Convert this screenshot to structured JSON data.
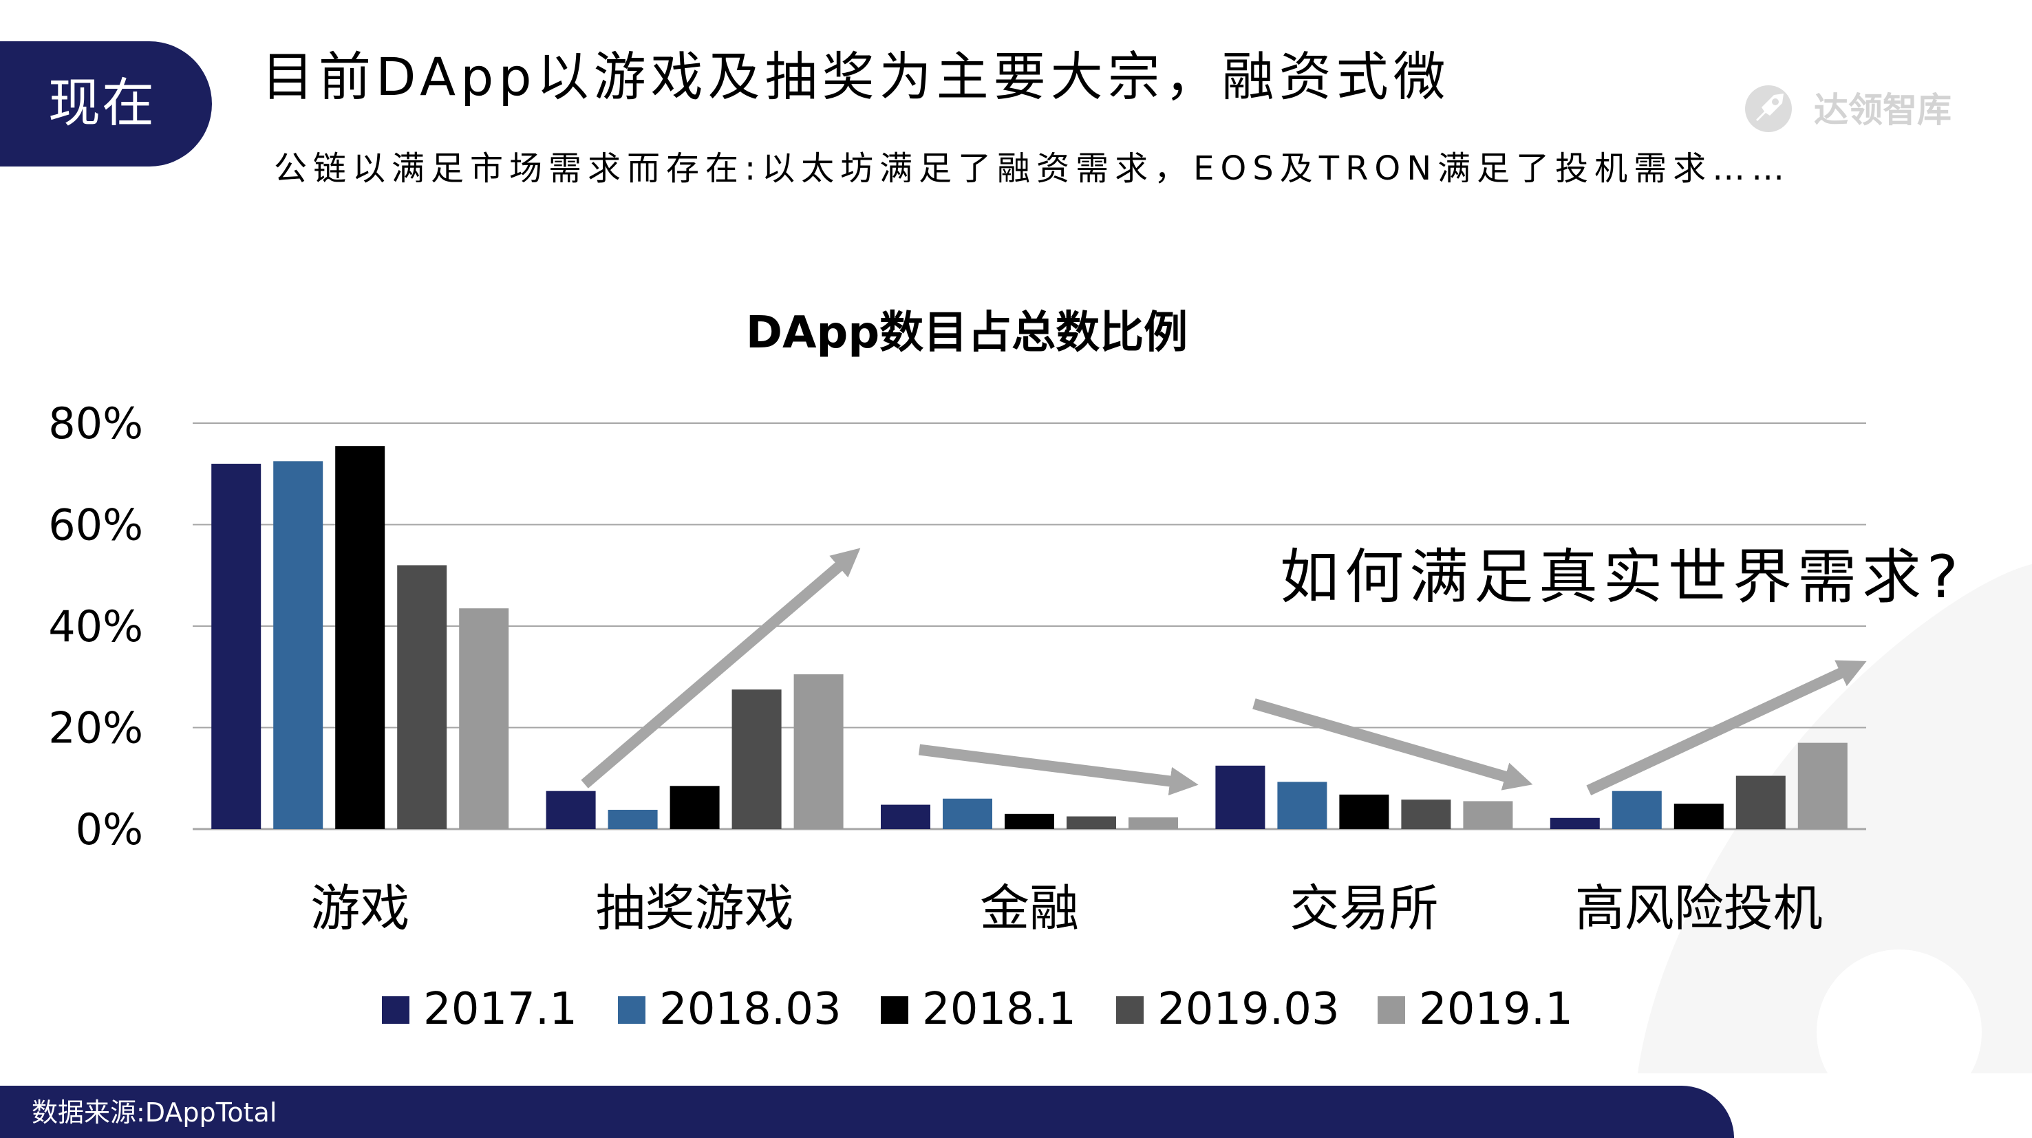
{
  "section_tab": "现在",
  "headline": "目前DApp以游戏及抽奖为主要大宗，融资式微",
  "subline": "公链以满足市场需求而存在:以太坊满足了融资需求，EOS及TRON满足了投机需求……",
  "logo": {
    "text": "达领智库",
    "icon": "rocket-icon"
  },
  "footer": {
    "source": "数据来源:DAppTotal"
  },
  "colors": {
    "navy": "#1b1f5e",
    "series": [
      "#1b1f5e",
      "#336699",
      "#000000",
      "#4d4d4d",
      "#999999"
    ],
    "arrow": "#a6a6a6",
    "grid": "#a6a6a6"
  },
  "chart_data": {
    "type": "bar",
    "title": "DApp数目占总数比例",
    "categories": [
      "游戏",
      "抽奖游戏",
      "金融",
      "交易所",
      "高风险投机"
    ],
    "yticks": [
      "0%",
      "20%",
      "40%",
      "60%",
      "80%"
    ],
    "ylim": [
      0,
      80
    ],
    "grid": true,
    "legend_position": "bottom",
    "series": [
      {
        "name": "2017.1",
        "values": [
          72,
          7.5,
          4.8,
          12.5,
          2.2
        ]
      },
      {
        "name": "2018.03",
        "values": [
          72.5,
          3.8,
          6.0,
          9.3,
          7.5
        ]
      },
      {
        "name": "2018.1",
        "values": [
          75.5,
          8.5,
          3.0,
          6.8,
          5.0
        ]
      },
      {
        "name": "2019.03",
        "values": [
          52,
          27.5,
          2.5,
          5.8,
          10.5
        ]
      },
      {
        "name": "2019.1",
        "values": [
          43.5,
          30.5,
          2.3,
          5.5,
          17
        ]
      }
    ],
    "annotation": "如何满足真实世界需求?"
  }
}
